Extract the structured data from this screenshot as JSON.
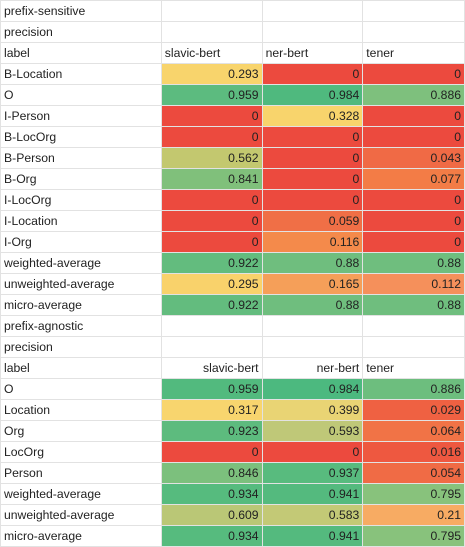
{
  "sheet": {
    "rows": [
      {
        "kind": "text",
        "cells": [
          {
            "v": "prefix-sensitive"
          },
          {
            "v": ""
          },
          {
            "v": ""
          },
          {
            "v": ""
          }
        ]
      },
      {
        "kind": "text",
        "cells": [
          {
            "v": "precision"
          },
          {
            "v": ""
          },
          {
            "v": ""
          },
          {
            "v": ""
          }
        ]
      },
      {
        "kind": "header",
        "cells": [
          {
            "v": "label"
          },
          {
            "v": "slavic-bert",
            "align": "left"
          },
          {
            "v": "ner-bert",
            "align": "left"
          },
          {
            "v": "tener",
            "align": "left"
          }
        ]
      },
      {
        "kind": "data",
        "cells": [
          {
            "v": "B-Location"
          },
          {
            "v": "0.293",
            "bg": "#f8d46c"
          },
          {
            "v": "0",
            "bg": "#ec4a3e"
          },
          {
            "v": "0",
            "bg": "#ec4a3e"
          }
        ]
      },
      {
        "kind": "data",
        "cells": [
          {
            "v": "O"
          },
          {
            "v": "0.959",
            "bg": "#5cbb7f"
          },
          {
            "v": "0.984",
            "bg": "#4fb97e"
          },
          {
            "v": "0.886",
            "bg": "#7ec07d"
          }
        ]
      },
      {
        "kind": "data",
        "cells": [
          {
            "v": "I-Person"
          },
          {
            "v": "0",
            "bg": "#ec4a3e"
          },
          {
            "v": "0.328",
            "bg": "#f8d46c"
          },
          {
            "v": "0",
            "bg": "#ec4a3e"
          }
        ]
      },
      {
        "kind": "data",
        "cells": [
          {
            "v": "B-LocOrg"
          },
          {
            "v": "0",
            "bg": "#ec4a3e"
          },
          {
            "v": "0",
            "bg": "#ec4a3e"
          },
          {
            "v": "0",
            "bg": "#ec4a3e"
          }
        ]
      },
      {
        "kind": "data",
        "cells": [
          {
            "v": "B-Person"
          },
          {
            "v": "0.562",
            "bg": "#c3c86f"
          },
          {
            "v": "0",
            "bg": "#ec4a3e"
          },
          {
            "v": "0.043",
            "bg": "#f06a45"
          }
        ]
      },
      {
        "kind": "data",
        "cells": [
          {
            "v": "B-Org"
          },
          {
            "v": "0.841",
            "bg": "#80c07b"
          },
          {
            "v": "0",
            "bg": "#ec4a3e"
          },
          {
            "v": "0.077",
            "bg": "#f37c46"
          }
        ]
      },
      {
        "kind": "data",
        "cells": [
          {
            "v": "I-LocOrg"
          },
          {
            "v": "0",
            "bg": "#ec4a3e"
          },
          {
            "v": "0",
            "bg": "#ec4a3e"
          },
          {
            "v": "0",
            "bg": "#ec4a3e"
          }
        ]
      },
      {
        "kind": "data",
        "cells": [
          {
            "v": "I-Location"
          },
          {
            "v": "0",
            "bg": "#ec4a3e"
          },
          {
            "v": "0.059",
            "bg": "#f06f46"
          },
          {
            "v": "0",
            "bg": "#ec4a3e"
          }
        ]
      },
      {
        "kind": "data",
        "cells": [
          {
            "v": "I-Org"
          },
          {
            "v": "0",
            "bg": "#ec4a3e"
          },
          {
            "v": "0.116",
            "bg": "#f48a4b"
          },
          {
            "v": "0",
            "bg": "#ec4a3e"
          }
        ]
      },
      {
        "kind": "data",
        "cells": [
          {
            "v": "weighted-average"
          },
          {
            "v": "0.922",
            "bg": "#63bc7e"
          },
          {
            "v": "0.88",
            "bg": "#6fbe7e"
          },
          {
            "v": "0.88",
            "bg": "#6fbe7e"
          }
        ]
      },
      {
        "kind": "data",
        "cells": [
          {
            "v": "unweighted-average"
          },
          {
            "v": "0.295",
            "bg": "#f9d26b"
          },
          {
            "v": "0.165",
            "bg": "#f59f59"
          },
          {
            "v": "0.112",
            "bg": "#f5905b"
          }
        ]
      },
      {
        "kind": "data",
        "cells": [
          {
            "v": "micro-average"
          },
          {
            "v": "0.922",
            "bg": "#63bc7e"
          },
          {
            "v": "0.88",
            "bg": "#6fbe7e"
          },
          {
            "v": "0.88",
            "bg": "#6fbe7e"
          }
        ]
      },
      {
        "kind": "text",
        "cells": [
          {
            "v": "prefix-agnostic"
          },
          {
            "v": ""
          },
          {
            "v": ""
          },
          {
            "v": ""
          }
        ]
      },
      {
        "kind": "text",
        "cells": [
          {
            "v": "precision"
          },
          {
            "v": ""
          },
          {
            "v": ""
          },
          {
            "v": ""
          }
        ]
      },
      {
        "kind": "header",
        "cells": [
          {
            "v": "label"
          },
          {
            "v": "slavic-bert",
            "align": "right"
          },
          {
            "v": "ner-bert",
            "align": "right"
          },
          {
            "v": "tener",
            "align": "left"
          }
        ]
      },
      {
        "kind": "data",
        "cells": [
          {
            "v": "O"
          },
          {
            "v": "0.959",
            "bg": "#52ba7e"
          },
          {
            "v": "0.984",
            "bg": "#4cb97f"
          },
          {
            "v": "0.886",
            "bg": "#6dbe7e"
          }
        ]
      },
      {
        "kind": "data",
        "cells": [
          {
            "v": "Location"
          },
          {
            "v": "0.317",
            "bg": "#f8d56e"
          },
          {
            "v": "0.399",
            "bg": "#e9d474"
          },
          {
            "v": "0.029",
            "bg": "#ef6142"
          }
        ]
      },
      {
        "kind": "data",
        "cells": [
          {
            "v": "Org"
          },
          {
            "v": "0.923",
            "bg": "#5dbb7e"
          },
          {
            "v": "0.593",
            "bg": "#bfc878"
          },
          {
            "v": "0.064",
            "bg": "#f17346"
          }
        ]
      },
      {
        "kind": "data",
        "cells": [
          {
            "v": "LocOrg"
          },
          {
            "v": "0",
            "bg": "#ec4a3e"
          },
          {
            "v": "0",
            "bg": "#ec4a3e"
          },
          {
            "v": "0.016",
            "bg": "#ee5840"
          }
        ]
      },
      {
        "kind": "data",
        "cells": [
          {
            "v": "Person"
          },
          {
            "v": "0.846",
            "bg": "#7cc07d"
          },
          {
            "v": "0.937",
            "bg": "#58bb7e"
          },
          {
            "v": "0.054",
            "bg": "#f06b45"
          }
        ]
      },
      {
        "kind": "data",
        "cells": [
          {
            "v": "weighted-average"
          },
          {
            "v": "0.934",
            "bg": "#56bb7e"
          },
          {
            "v": "0.941",
            "bg": "#54ba7e"
          },
          {
            "v": "0.795",
            "bg": "#88c27c"
          }
        ]
      },
      {
        "kind": "data",
        "cells": [
          {
            "v": "unweighted-average"
          },
          {
            "v": "0.609",
            "bg": "#bac776"
          },
          {
            "v": "0.583",
            "bg": "#c3c976"
          },
          {
            "v": "0.21",
            "bg": "#f7ab63"
          }
        ]
      },
      {
        "kind": "data",
        "cells": [
          {
            "v": "micro-average"
          },
          {
            "v": "0.934",
            "bg": "#56bb7e"
          },
          {
            "v": "0.941",
            "bg": "#54ba7e"
          },
          {
            "v": "0.795",
            "bg": "#88c27c"
          }
        ]
      }
    ]
  }
}
